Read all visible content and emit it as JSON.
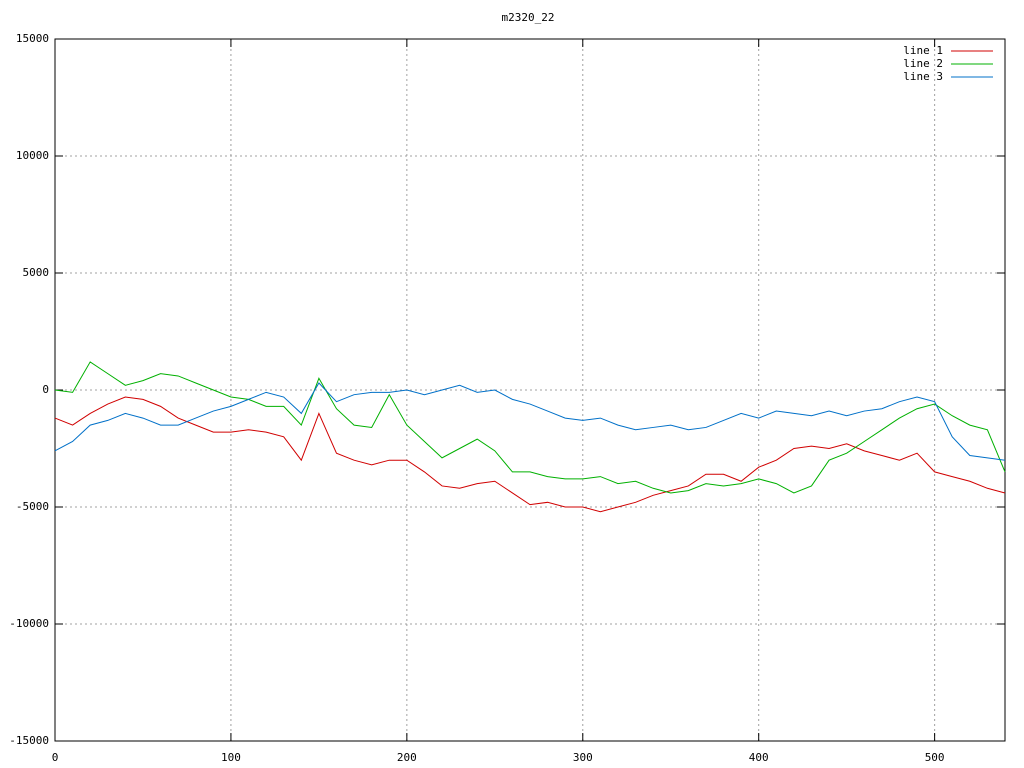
{
  "chart_data": {
    "type": "line",
    "title": "m2320_22",
    "x": [
      0,
      10,
      20,
      30,
      40,
      50,
      60,
      70,
      80,
      90,
      100,
      110,
      120,
      130,
      140,
      150,
      160,
      170,
      180,
      190,
      200,
      210,
      220,
      230,
      240,
      250,
      260,
      270,
      280,
      290,
      300,
      310,
      320,
      330,
      340,
      350,
      360,
      370,
      380,
      390,
      400,
      410,
      420,
      430,
      440,
      450,
      460,
      470,
      480,
      490,
      500,
      510,
      520,
      530,
      540
    ],
    "series": [
      {
        "name": "line 1",
        "color": "#d00000",
        "values": [
          -1200,
          -1500,
          -1000,
          -600,
          -300,
          -400,
          -700,
          -1200,
          -1500,
          -1800,
          -1800,
          -1700,
          -1800,
          -2000,
          -3000,
          -1000,
          -2700,
          -3000,
          -3200,
          -3000,
          -3000,
          -3500,
          -4100,
          -4200,
          -4000,
          -3900,
          -4400,
          -4900,
          -4800,
          -5000,
          -5000,
          -5200,
          -5000,
          -4800,
          -4500,
          -4300,
          -4100,
          -3600,
          -3600,
          -3900,
          -3300,
          -3000,
          -2500,
          -2400,
          -2500,
          -2300,
          -2600,
          -2800,
          -3000,
          -2700,
          -3500,
          -3700,
          -3900,
          -4200,
          -4400
        ]
      },
      {
        "name": "line 2",
        "color": "#00b000",
        "values": [
          0,
          -100,
          1200,
          700,
          200,
          400,
          700,
          600,
          300,
          0,
          -300,
          -400,
          -700,
          -700,
          -1500,
          500,
          -800,
          -1500,
          -1600,
          -200,
          -1500,
          -2200,
          -2900,
          -2500,
          -2100,
          -2600,
          -3500,
          -3500,
          -3700,
          -3800,
          -3800,
          -3700,
          -4000,
          -3900,
          -4200,
          -4400,
          -4300,
          -4000,
          -4100,
          -4000,
          -3800,
          -4000,
          -4400,
          -4100,
          -3000,
          -2700,
          -2200,
          -1700,
          -1200,
          -800,
          -600,
          -1100,
          -1500,
          -1700,
          -3500
        ]
      },
      {
        "name": "line 3",
        "color": "#0070c8",
        "values": [
          -2600,
          -2200,
          -1500,
          -1300,
          -1000,
          -1200,
          -1500,
          -1500,
          -1200,
          -900,
          -700,
          -400,
          -100,
          -300,
          -1000,
          300,
          -500,
          -200,
          -100,
          -100,
          0,
          -200,
          0,
          200,
          -100,
          0,
          -400,
          -600,
          -900,
          -1200,
          -1300,
          -1200,
          -1500,
          -1700,
          -1600,
          -1500,
          -1700,
          -1600,
          -1300,
          -1000,
          -1200,
          -900,
          -1000,
          -1100,
          -900,
          -1100,
          -900,
          -800,
          -500,
          -300,
          -500,
          -2000,
          -2800,
          -2900,
          -3000
        ]
      }
    ],
    "xlim": [
      0,
      540
    ],
    "xticks": [
      0,
      100,
      200,
      300,
      400,
      500
    ],
    "ylim": [
      -15000,
      15000
    ],
    "yticks": [
      -15000,
      -10000,
      -5000,
      0,
      5000,
      10000,
      15000
    ],
    "grid": true,
    "legend": "top-right"
  }
}
